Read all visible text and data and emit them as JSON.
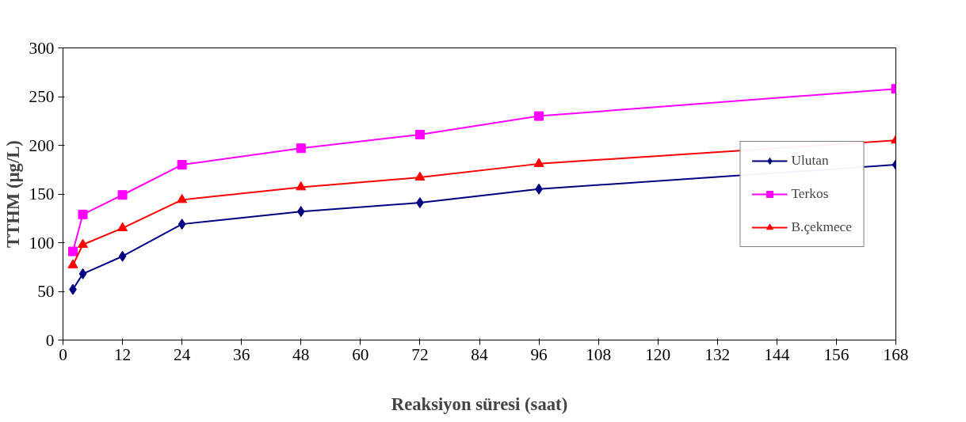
{
  "chart_data": {
    "type": "line",
    "xlabel": "Reaksiyon süresi (saat)",
    "ylabel": "TTHM (µg/L)",
    "xlim": [
      0,
      168
    ],
    "xticks": [
      0,
      12,
      24,
      36,
      48,
      60,
      72,
      84,
      96,
      108,
      120,
      132,
      144,
      156,
      168
    ],
    "ylim": [
      0,
      300
    ],
    "yticks": [
      0,
      50,
      100,
      150,
      200,
      250,
      300
    ],
    "grid": false,
    "legend": "right",
    "series": [
      {
        "name": "Ulutan",
        "color": "#000080",
        "marker": "diamond",
        "x": [
          2,
          4,
          12,
          24,
          48,
          72,
          96,
          168
        ],
        "values": [
          52,
          68,
          86,
          119,
          132,
          141,
          155,
          180
        ]
      },
      {
        "name": "Terkos",
        "color": "#ff00ff",
        "marker": "square",
        "x": [
          2,
          4,
          12,
          24,
          48,
          72,
          96,
          168
        ],
        "values": [
          91,
          129,
          149,
          180,
          197,
          211,
          230,
          258
        ]
      },
      {
        "name": "B.çekmece",
        "color": "#ff0000",
        "marker": "triangle",
        "x": [
          2,
          4,
          12,
          24,
          48,
          72,
          96,
          168
        ],
        "values": [
          77,
          98,
          115,
          144,
          157,
          167,
          181,
          205
        ]
      }
    ]
  }
}
